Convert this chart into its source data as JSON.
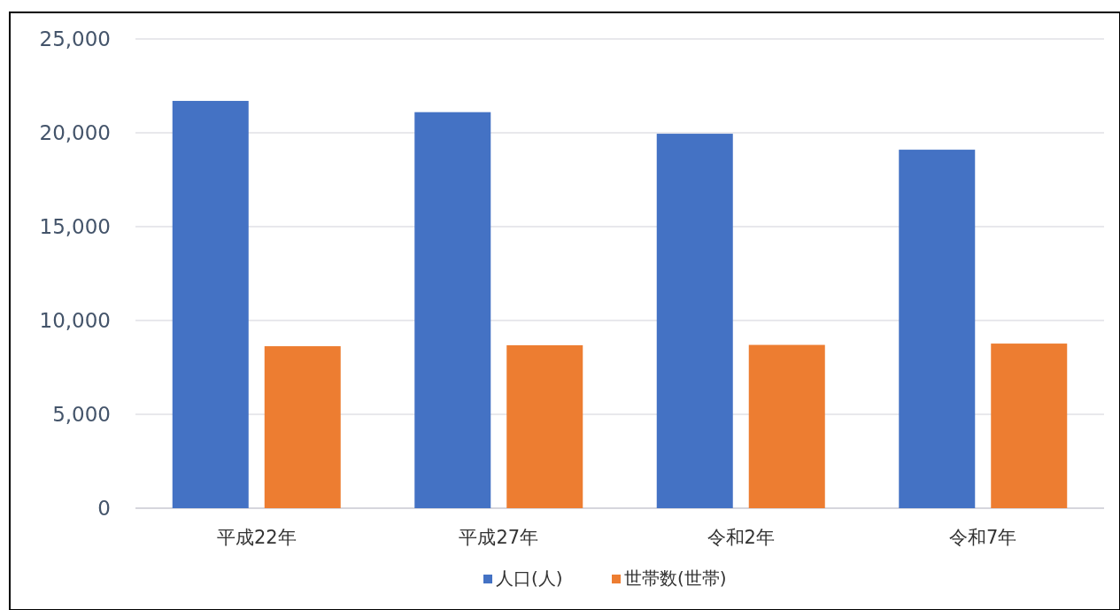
{
  "chart_data": {
    "type": "bar",
    "categories": [
      "平成22年",
      "平成27年",
      "令和2年",
      "令和7年"
    ],
    "series": [
      {
        "name": "人口(人)",
        "color": "#4472c4",
        "values": [
          21700,
          21100,
          19950,
          19100
        ]
      },
      {
        "name": "世帯数(世帯)",
        "color": "#ed7d31",
        "values": [
          8630,
          8680,
          8700,
          8770
        ]
      }
    ],
    "ylim": [
      0,
      25000
    ],
    "yticks": [
      0,
      {
        "value": 5000,
        "label": "5,000"
      },
      {
        "value": 10000,
        "label": "10,000"
      },
      {
        "value": 15000,
        "label": "15,000"
      },
      {
        "value": 20000,
        "label": "20,000"
      },
      {
        "value": 25000,
        "label": "25,000"
      }
    ],
    "grid": "y",
    "legend": "bottom"
  }
}
